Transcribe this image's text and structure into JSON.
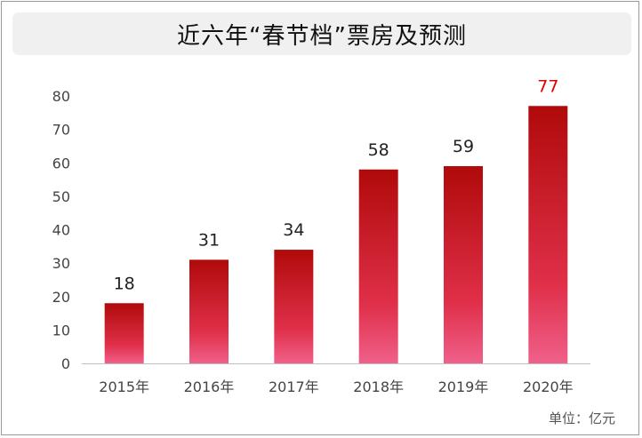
{
  "title": "近六年“春节档”票房及预测",
  "unit_note": "单位：亿元",
  "colors": {
    "bar_top": "#b00a0a",
    "bar_mid": "#e0304a",
    "bar_bottom": "#f0608a",
    "highlight_label": "#e00000",
    "label": "#222222",
    "axis_text": "#444444"
  },
  "chart_data": {
    "type": "bar",
    "title": "近六年“春节档”票房及预测",
    "categories": [
      "2015年",
      "2016年",
      "2017年",
      "2018年",
      "2019年",
      "2020年"
    ],
    "values": [
      18,
      31,
      34,
      58,
      59,
      77
    ],
    "data_labels": [
      "18",
      "31",
      "34",
      "58",
      "59",
      "77"
    ],
    "highlight_index": 5,
    "ylim": [
      0,
      80
    ],
    "yticks": [
      "0",
      "10",
      "20",
      "30",
      "40",
      "50",
      "60",
      "70",
      "80"
    ],
    "grid": false,
    "xlabel": "",
    "ylabel": ""
  }
}
